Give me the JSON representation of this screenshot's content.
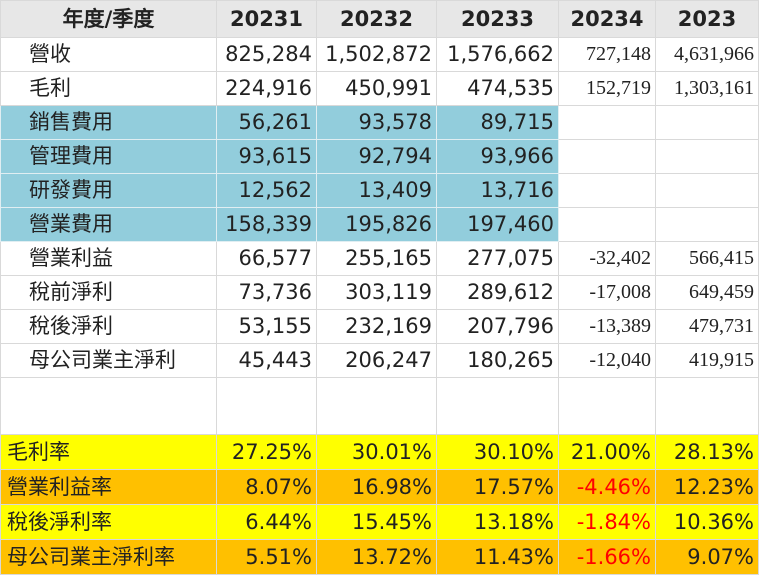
{
  "columns": [
    "年度/季度",
    "20231",
    "20232",
    "20233",
    "20234",
    "2023"
  ],
  "rows": [
    {
      "label": "營收",
      "values": [
        "825,284",
        "1,502,872",
        "1,576,662",
        "727,148",
        "4,631,966"
      ]
    },
    {
      "label": "毛利",
      "values": [
        "224,916",
        "450,991",
        "474,535",
        "152,719",
        "1,303,161"
      ]
    },
    {
      "label": "銷售費用",
      "values": [
        "56,261",
        "93,578",
        "89,715",
        "",
        ""
      ]
    },
    {
      "label": "管理費用",
      "values": [
        "93,615",
        "92,794",
        "93,966",
        "",
        ""
      ]
    },
    {
      "label": "研發費用",
      "values": [
        "12,562",
        "13,409",
        "13,716",
        "",
        ""
      ]
    },
    {
      "label": "營業費用",
      "values": [
        "158,339",
        "195,826",
        "197,460",
        "",
        ""
      ]
    },
    {
      "label": "營業利益",
      "values": [
        "66,577",
        "255,165",
        "277,075",
        "-32,402",
        "566,415"
      ]
    },
    {
      "label": "稅前淨利",
      "values": [
        "73,736",
        "303,119",
        "289,612",
        "-17,008",
        "649,459"
      ]
    },
    {
      "label": "稅後淨利",
      "values": [
        "53,155",
        "232,169",
        "207,796",
        "-13,389",
        "479,731"
      ]
    },
    {
      "label": "母公司業主淨利",
      "values": [
        "45,443",
        "206,247",
        "180,265",
        "-12,040",
        "419,915"
      ]
    }
  ],
  "ratios": [
    {
      "label": "毛利率",
      "values": [
        "27.25%",
        "30.01%",
        "30.10%",
        "21.00%",
        "28.13%"
      ]
    },
    {
      "label": "營業利益率",
      "values": [
        "8.07%",
        "16.98%",
        "17.57%",
        "-4.46%",
        "12.23%"
      ]
    },
    {
      "label": "稅後淨利率",
      "values": [
        "6.44%",
        "15.45%",
        "13.18%",
        "-1.84%",
        "10.36%"
      ]
    },
    {
      "label": "母公司業主淨利率",
      "values": [
        "5.51%",
        "13.72%",
        "11.43%",
        "-1.66%",
        "9.07%"
      ]
    }
  ],
  "colors": {
    "expense_highlight": "#92cddc",
    "ratio_yellow": "#ffff00",
    "ratio_orange": "#ffc000",
    "negative": "#ff0000"
  }
}
